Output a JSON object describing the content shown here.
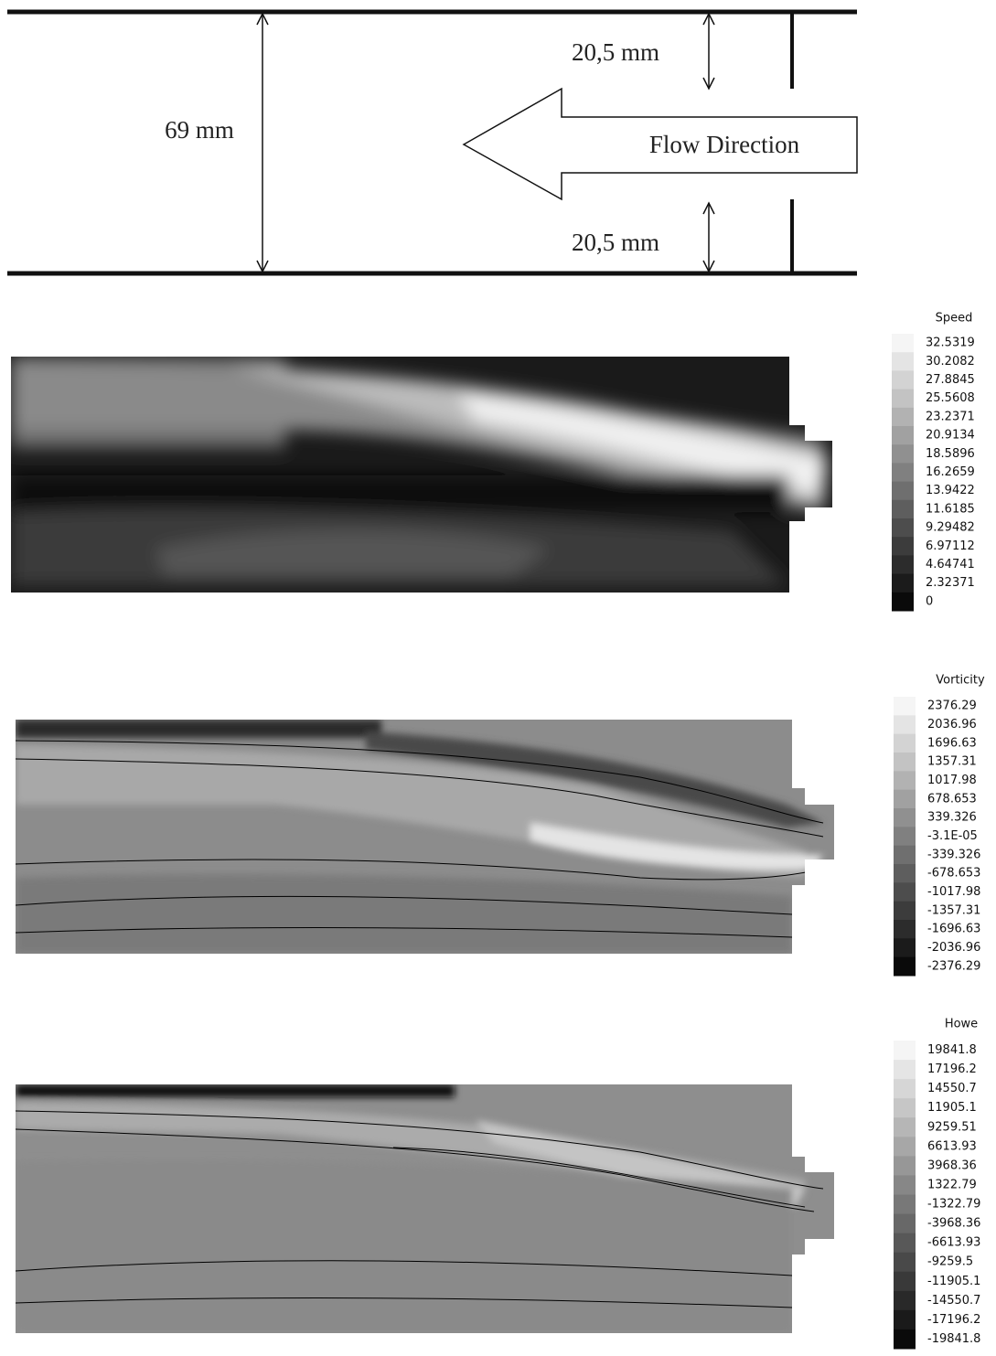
{
  "diagram": {
    "top_gap": "20,5 mm",
    "height": "69 mm",
    "flow": "Flow Direction",
    "bottom_gap": "20,5 mm"
  },
  "panels": [
    {
      "legend_title": "Speed",
      "levels": [
        "32.5319",
        "30.2082",
        "27.8845",
        "25.5608",
        "23.2371",
        "20.9134",
        "18.5896",
        "16.2659",
        "13.9422",
        "11.6185",
        "9.29482",
        "6.97112",
        "4.64741",
        "2.32371",
        "0"
      ]
    },
    {
      "legend_title": "Vorticity",
      "levels": [
        "2376.29",
        "2036.96",
        "1696.63",
        "1357.31",
        "1017.98",
        "678.653",
        "339.326",
        "-3.1E-05",
        "-339.326",
        "-678.653",
        "-1017.98",
        "-1357.31",
        "-1696.63",
        "-2036.96",
        "-2376.29"
      ]
    },
    {
      "legend_title": "Howe",
      "levels": [
        "19841.8",
        "17196.2",
        "14550.7",
        "11905.1",
        "9259.51",
        "6613.93",
        "3968.36",
        "1322.79",
        "-1322.79",
        "-3968.36",
        "-6613.93",
        "-9259.5",
        "-11905.1",
        "-14550.7",
        "-17196.2",
        "-19841.8"
      ]
    }
  ]
}
